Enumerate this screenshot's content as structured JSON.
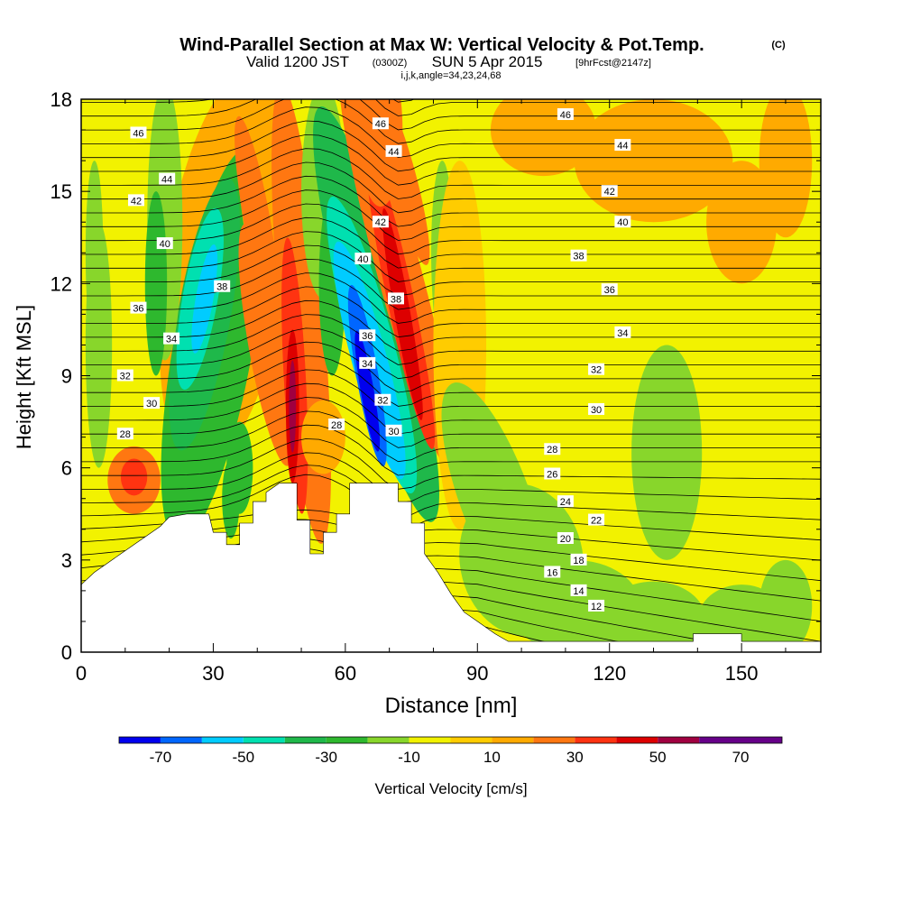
{
  "chart_data": {
    "type": "heatmap",
    "title": "Wind-Parallel Section at Max W: Vertical Velocity & Pot.Temp.",
    "title_mark": "(C)",
    "subtitle": {
      "valid": "Valid 1200 JST",
      "utc": "(0300Z)",
      "date": "SUN 5 Apr 2015",
      "forecast": "[9hrFcst@2147z]"
    },
    "indices": "i,j,k,angle=34,23,24,68",
    "xlabel": "Distance [nm]",
    "ylabel": "Height [Kft MSL]",
    "xlim": [
      0,
      168
    ],
    "ylim": [
      0,
      18
    ],
    "x_ticks": [
      0,
      30,
      60,
      90,
      120,
      150
    ],
    "y_ticks": [
      0,
      3,
      6,
      9,
      12,
      15,
      18
    ],
    "colorbar": {
      "label": "Vertical Velocity [cm/s]",
      "tick_labels": [
        "-70",
        "-50",
        "-30",
        "-10",
        "10",
        "30",
        "50",
        "70"
      ],
      "tick_values": [
        -70,
        -50,
        -30,
        -10,
        10,
        30,
        50,
        70
      ],
      "range": [
        -80,
        80
      ],
      "step": 10,
      "colors": [
        "#0000ee",
        "#0066ff",
        "#00ccff",
        "#00e0b0",
        "#1fb84a",
        "#2eb82e",
        "#88d62b",
        "#f2f200",
        "#ffcc00",
        "#ffaa00",
        "#ff7711",
        "#ff3311",
        "#dd0000",
        "#a00040",
        "#660088"
      ]
    },
    "contour_field": "potential temperature",
    "contour_labels": [
      {
        "text": "46",
        "x": 13,
        "y": 16.9
      },
      {
        "text": "44",
        "x": 19.5,
        "y": 15.4
      },
      {
        "text": "42",
        "x": 12.5,
        "y": 14.7
      },
      {
        "text": "40",
        "x": 19,
        "y": 13.3
      },
      {
        "text": "38",
        "x": 32,
        "y": 11.9
      },
      {
        "text": "36",
        "x": 13,
        "y": 11.2
      },
      {
        "text": "34",
        "x": 20.5,
        "y": 10.2
      },
      {
        "text": "32",
        "x": 10,
        "y": 9.0
      },
      {
        "text": "30",
        "x": 16,
        "y": 8.1
      },
      {
        "text": "28",
        "x": 10,
        "y": 7.1
      },
      {
        "text": "46",
        "x": 68,
        "y": 17.2
      },
      {
        "text": "44",
        "x": 71,
        "y": 16.3
      },
      {
        "text": "42",
        "x": 68,
        "y": 14.0
      },
      {
        "text": "40",
        "x": 64,
        "y": 12.8
      },
      {
        "text": "38",
        "x": 71.5,
        "y": 11.5
      },
      {
        "text": "36",
        "x": 65,
        "y": 10.3
      },
      {
        "text": "34",
        "x": 65,
        "y": 9.4
      },
      {
        "text": "32",
        "x": 68.5,
        "y": 8.2
      },
      {
        "text": "30",
        "x": 71,
        "y": 7.2
      },
      {
        "text": "28",
        "x": 58,
        "y": 7.4
      },
      {
        "text": "46",
        "x": 110,
        "y": 17.5
      },
      {
        "text": "44",
        "x": 123,
        "y": 16.5
      },
      {
        "text": "42",
        "x": 120,
        "y": 15.0
      },
      {
        "text": "40",
        "x": 123,
        "y": 14.0
      },
      {
        "text": "38",
        "x": 113,
        "y": 12.9
      },
      {
        "text": "36",
        "x": 120,
        "y": 11.8
      },
      {
        "text": "34",
        "x": 123,
        "y": 10.4
      },
      {
        "text": "32",
        "x": 117,
        "y": 9.2
      },
      {
        "text": "30",
        "x": 117,
        "y": 7.9
      },
      {
        "text": "28",
        "x": 107,
        "y": 6.6
      },
      {
        "text": "26",
        "x": 107,
        "y": 5.8
      },
      {
        "text": "24",
        "x": 110,
        "y": 4.9
      },
      {
        "text": "22",
        "x": 117,
        "y": 4.3
      },
      {
        "text": "20",
        "x": 110,
        "y": 3.7
      },
      {
        "text": "18",
        "x": 113,
        "y": 3.0
      },
      {
        "text": "16",
        "x": 107,
        "y": 2.6
      },
      {
        "text": "14",
        "x": 113,
        "y": 2.0
      },
      {
        "text": "12",
        "x": 117,
        "y": 1.5
      }
    ],
    "terrain_profile": [
      [
        0,
        2.2
      ],
      [
        3,
        2.6
      ],
      [
        6,
        2.9
      ],
      [
        9,
        3.2
      ],
      [
        12,
        3.5
      ],
      [
        15,
        3.8
      ],
      [
        18,
        4.1
      ],
      [
        20,
        4.4
      ],
      [
        24,
        4.5
      ],
      [
        29,
        4.5
      ],
      [
        30,
        3.9
      ],
      [
        33,
        3.9
      ],
      [
        33,
        3.5
      ],
      [
        36,
        3.5
      ],
      [
        36,
        4.2
      ],
      [
        39,
        4.2
      ],
      [
        39,
        4.9
      ],
      [
        42,
        4.9
      ],
      [
        42,
        5.2
      ],
      [
        45,
        5.5
      ],
      [
        49,
        5.5
      ],
      [
        49,
        4.3
      ],
      [
        52,
        4.3
      ],
      [
        52,
        3.2
      ],
      [
        55,
        3.2
      ],
      [
        55,
        3.9
      ],
      [
        58,
        3.9
      ],
      [
        58,
        4.5
      ],
      [
        61,
        4.5
      ],
      [
        61,
        5.5
      ],
      [
        72,
        5.5
      ],
      [
        72,
        4.9
      ],
      [
        75,
        4.9
      ],
      [
        75,
        4.2
      ],
      [
        78,
        4.2
      ],
      [
        78,
        3.2
      ],
      [
        81,
        2.6
      ],
      [
        84,
        1.9
      ],
      [
        87,
        1.3
      ],
      [
        90,
        1.0
      ],
      [
        94,
        0.6
      ],
      [
        97,
        0.35
      ],
      [
        100,
        0.35
      ],
      [
        100,
        0.35
      ],
      [
        139,
        0.35
      ],
      [
        139,
        0.6
      ],
      [
        150,
        0.6
      ],
      [
        150,
        0.35
      ],
      [
        168,
        0.35
      ]
    ]
  }
}
